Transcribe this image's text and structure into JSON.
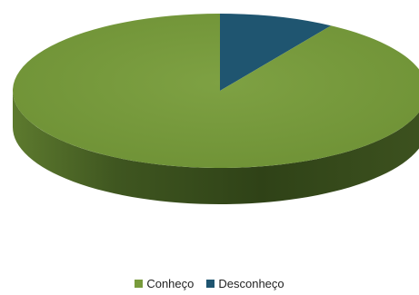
{
  "chart_data": {
    "type": "pie",
    "title": "",
    "style": "3d",
    "start_angle_deg": 0,
    "direction": "clockwise",
    "legend_position": "bottom",
    "slices": [
      {
        "label": "Desconheço",
        "value": 9,
        "color": "#1f5570",
        "side_color": "#143a4d"
      },
      {
        "label": "Conheço",
        "value": 91,
        "color": "#789b3c",
        "side_color": "#4f6826"
      }
    ]
  },
  "legend": {
    "items": [
      {
        "label": "Conheço",
        "color": "#789b3c"
      },
      {
        "label": "Desconheço",
        "color": "#1f5570"
      }
    ]
  }
}
